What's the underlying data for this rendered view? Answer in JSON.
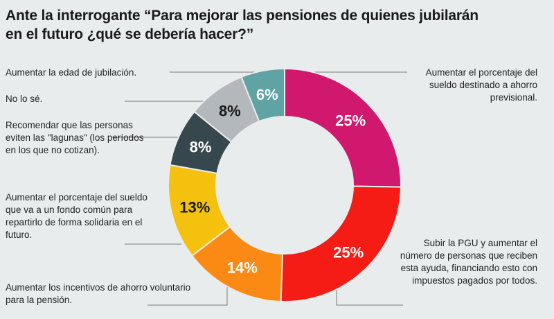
{
  "title": "Ante la interrogante “Para mejorar las pensiones de quienes jubilarán en el futuro ¿qué se debería hacer?”",
  "chart_data": {
    "type": "pie",
    "title": "Ante la interrogante “Para mejorar las pensiones de quienes jubilarán en el futuro ¿qué se debería hacer?”",
    "slices": [
      {
        "label": "Aumentar el porcentaje del sueldo destinado a ahorro previsional.",
        "value": 25,
        "display": "25%",
        "color": "#d0186f"
      },
      {
        "label": "Subir la PGU y aumentar el número de personas que reciben esta ayuda, financiando esto con impuestos pagados por todos.",
        "value": 25,
        "display": "25%",
        "color": "#f51c16"
      },
      {
        "label": "Aumentar los incentivos de ahorro voluntario para la pensión.",
        "value": 14,
        "display": "14%",
        "color": "#fb8a14"
      },
      {
        "label": "Aumentar el porcentaje del sueldo que va a un fondo común para repartirlo de forma solidaria en el futuro.",
        "value": 13,
        "display": "13%",
        "color": "#f4c20e"
      },
      {
        "label": "Recomendar que las personas eviten las \"lagunas\" (los períodos en los que no cotizan).",
        "value": 8,
        "display": "8%",
        "color": "#36474e"
      },
      {
        "label": "No lo sé.",
        "value": 8,
        "display": "8%",
        "color": "#b2b8bb"
      },
      {
        "label": "Aumentar la edad de jubilación.",
        "value": 6,
        "display": "6%",
        "color": "#5fa3a5"
      }
    ]
  }
}
